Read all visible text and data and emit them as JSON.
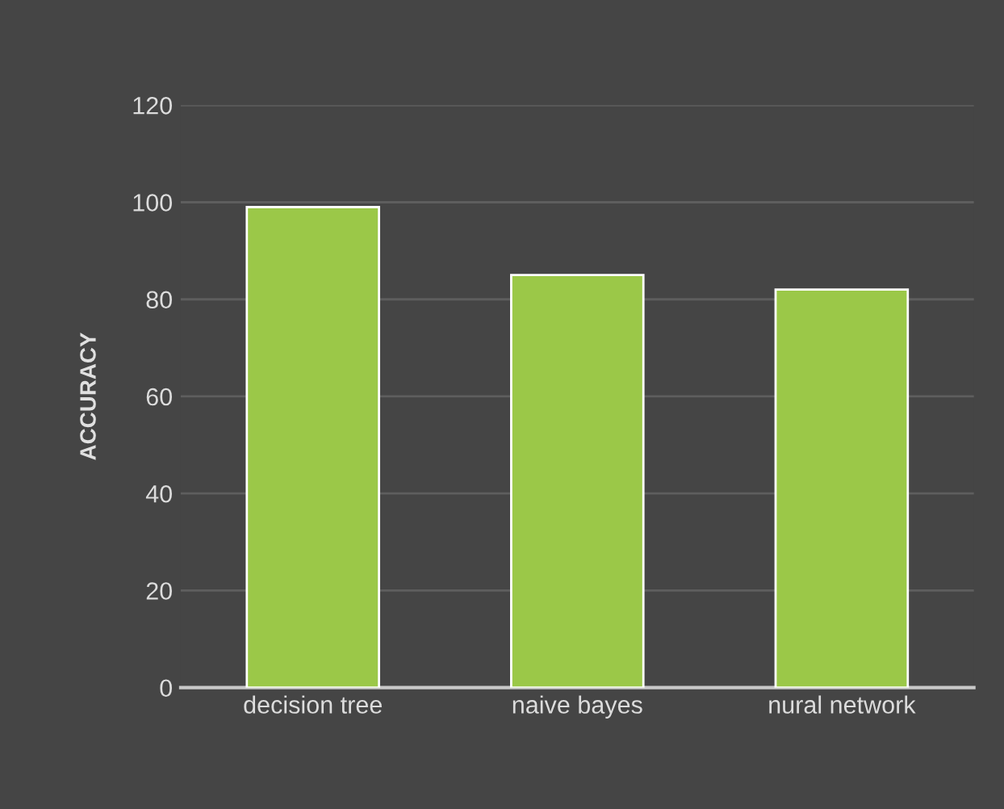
{
  "chart_data": {
    "type": "bar",
    "ylabel": "ACCURACY",
    "categories": [
      "decision tree",
      "naive bayes",
      "nural network"
    ],
    "values": [
      99,
      85,
      82
    ],
    "color": "#9bc848",
    "ylim": [
      0,
      120
    ],
    "yticks": [
      0,
      20,
      40,
      60,
      80,
      100,
      120
    ],
    "grid": "y"
  }
}
